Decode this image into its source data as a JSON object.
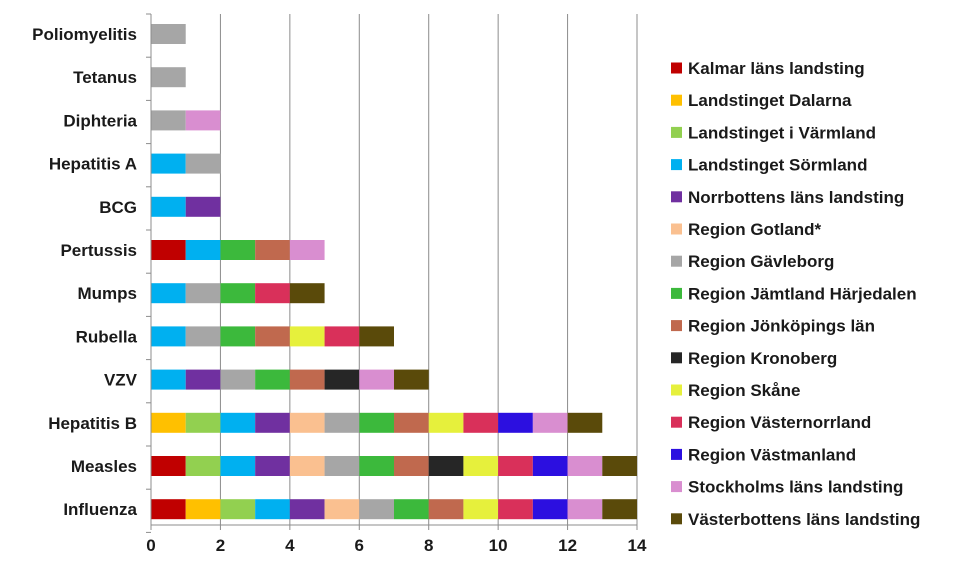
{
  "chart_data": {
    "type": "bar",
    "orientation": "horizontal",
    "stacked": true,
    "grid": true,
    "legend_position": "right",
    "xlim": [
      0,
      14
    ],
    "x_ticks": [
      "0",
      "2",
      "4",
      "6",
      "8",
      "10",
      "12",
      "14"
    ],
    "categories": [
      "Poliomyelitis",
      "Tetanus",
      "Diphteria",
      "Hepatitis A",
      "BCG",
      "Pertussis",
      "Mumps",
      "Rubella",
      "VZV",
      "Hepatitis B",
      "Measles",
      "Influenza"
    ],
    "series": [
      {
        "name": "Kalmar läns landsting",
        "color": "#c00000",
        "values": [
          0,
          0,
          0,
          0,
          0,
          1,
          0,
          0,
          0,
          0,
          1,
          1
        ]
      },
      {
        "name": "Landstinget Dalarna",
        "color": "#ffc000",
        "values": [
          0,
          0,
          0,
          0,
          0,
          0,
          0,
          0,
          0,
          1,
          0,
          1
        ]
      },
      {
        "name": "Landstinget i Värmland",
        "color": "#92d050",
        "values": [
          0,
          0,
          0,
          0,
          0,
          0,
          0,
          0,
          0,
          1,
          1,
          1
        ]
      },
      {
        "name": "Landstinget Sörmland",
        "color": "#00b0f0",
        "values": [
          0,
          0,
          0,
          1,
          1,
          1,
          1,
          1,
          1,
          1,
          1,
          1
        ]
      },
      {
        "name": "Norrbottens läns landsting",
        "color": "#7030a0",
        "values": [
          0,
          0,
          0,
          0,
          1,
          0,
          0,
          0,
          1,
          1,
          1,
          1
        ]
      },
      {
        "name": "Region Gotland*",
        "color": "#fac090",
        "values": [
          0,
          0,
          0,
          0,
          0,
          0,
          0,
          0,
          0,
          1,
          1,
          1
        ]
      },
      {
        "name": "Region Gävleborg",
        "color": "#a6a6a6",
        "values": [
          1,
          1,
          1,
          1,
          0,
          0,
          1,
          1,
          1,
          1,
          1,
          1
        ]
      },
      {
        "name": "Region Jämtland Härjedalen",
        "color": "#3cb93c",
        "values": [
          0,
          0,
          0,
          0,
          0,
          1,
          1,
          1,
          1,
          1,
          1,
          1
        ]
      },
      {
        "name": "Region Jönköpings län",
        "color": "#c0694e",
        "values": [
          0,
          0,
          0,
          0,
          0,
          1,
          0,
          1,
          1,
          1,
          1,
          1
        ]
      },
      {
        "name": "Region Kronoberg",
        "color": "#262626",
        "values": [
          0,
          0,
          0,
          0,
          0,
          0,
          0,
          0,
          1,
          0,
          1,
          0
        ]
      },
      {
        "name": "Region Skåne",
        "color": "#e6f03c",
        "values": [
          0,
          0,
          0,
          0,
          0,
          0,
          0,
          1,
          0,
          1,
          1,
          1
        ]
      },
      {
        "name": "Region Västernorrland",
        "color": "#d9305a",
        "values": [
          0,
          0,
          0,
          0,
          0,
          0,
          1,
          1,
          0,
          1,
          1,
          1
        ]
      },
      {
        "name": "Region Västmanland",
        "color": "#2c0fe0",
        "values": [
          0,
          0,
          0,
          0,
          0,
          0,
          0,
          0,
          0,
          1,
          1,
          1
        ]
      },
      {
        "name": "Stockholms läns landsting",
        "color": "#d98ed0",
        "values": [
          0,
          0,
          1,
          0,
          0,
          1,
          0,
          0,
          1,
          1,
          1,
          1
        ]
      },
      {
        "name": "Västerbottens läns landsting",
        "color": "#5a4a0a",
        "values": [
          0,
          0,
          0,
          0,
          0,
          0,
          1,
          1,
          1,
          1,
          1,
          1
        ]
      }
    ]
  }
}
